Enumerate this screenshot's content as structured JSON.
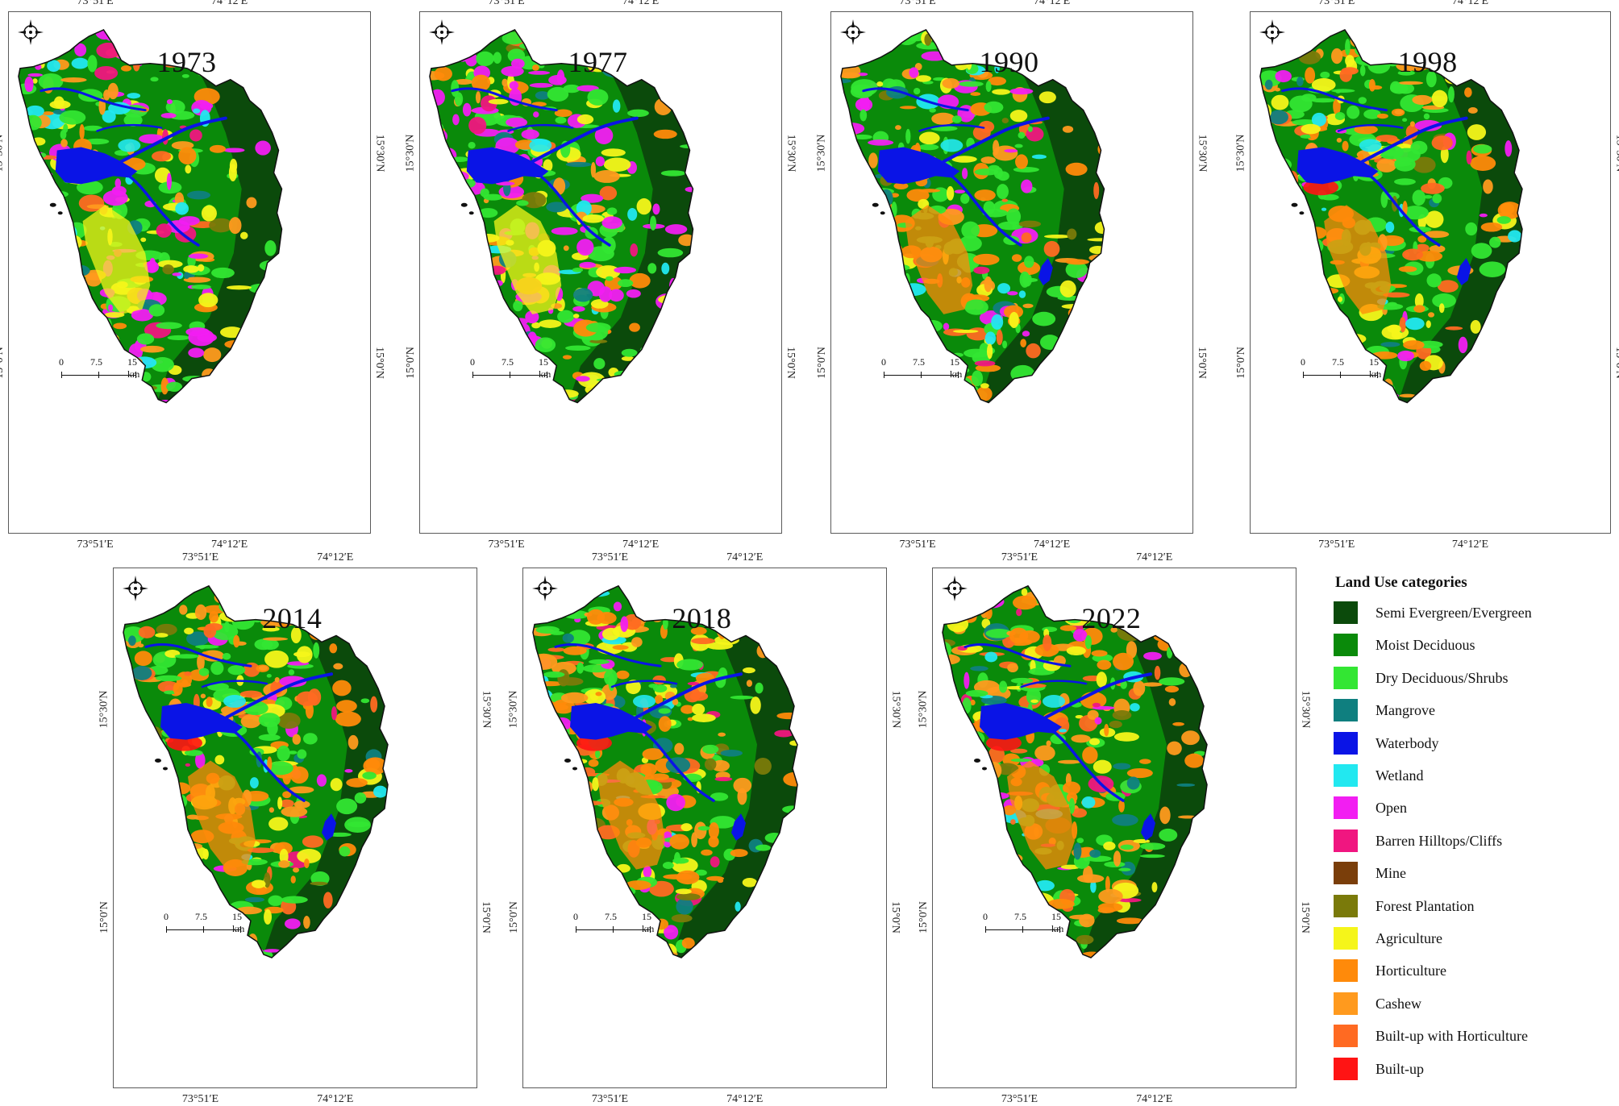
{
  "panels": [
    {
      "year": "1973",
      "lon_left": "73°51′E",
      "lon_right": "74°12′E",
      "lat_upper": "15°30′N",
      "lat_lower": "15°0′N",
      "scale": {
        "zero": "0",
        "mid": "7.5",
        "end": "15 km"
      }
    },
    {
      "year": "1977",
      "lon_left": "73°51′E",
      "lon_right": "74°12′E",
      "lat_upper": "15°30′N",
      "lat_lower": "15°0′N",
      "scale": {
        "zero": "0",
        "mid": "7.5",
        "end": "15 km"
      }
    },
    {
      "year": "1990",
      "lon_left": "73°51′E",
      "lon_right": "74°12′E",
      "lat_upper": "15°30′N",
      "lat_lower": "15°0′N",
      "scale": {
        "zero": "0",
        "mid": "7.5",
        "end": "15 km"
      }
    },
    {
      "year": "1998",
      "lon_left": "73°51′E",
      "lon_right": "74°12′E",
      "lat_upper": "15°30′N",
      "lat_lower": "15°0′N",
      "scale": {
        "zero": "0",
        "mid": "7.5",
        "end": "15 km"
      }
    },
    {
      "year": "2014",
      "lon_left": "73°51′E",
      "lon_right": "74°12′E",
      "lat_upper": "15°30′N",
      "lat_lower": "15°0′N",
      "scale": {
        "zero": "0",
        "mid": "7.5",
        "end": "15 km"
      }
    },
    {
      "year": "2018",
      "lon_left": "73°51′E",
      "lon_right": "74°12′E",
      "lat_upper": "15°30′N",
      "lat_lower": "15°0′N",
      "scale": {
        "zero": "0",
        "mid": "7.5",
        "end": "15 km"
      }
    },
    {
      "year": "2022",
      "lon_left": "73°51′E",
      "lon_right": "74°12′E",
      "lat_upper": "15°30′N",
      "lat_lower": "15°0′N",
      "scale": {
        "zero": "0",
        "mid": "7.5",
        "end": "15 km"
      }
    }
  ],
  "legend": {
    "title": "Land Use categories",
    "items": [
      {
        "label": "Semi Evergreen/Evergreen",
        "color": "#0b4a0b"
      },
      {
        "label": "Moist Deciduous",
        "color": "#0a8a0a"
      },
      {
        "label": "Dry Deciduous/Shrubs",
        "color": "#33e633"
      },
      {
        "label": "Mangrove",
        "color": "#0f7f7f"
      },
      {
        "label": "Waterbody",
        "color": "#0a14e6"
      },
      {
        "label": "Wetland",
        "color": "#22e8f0"
      },
      {
        "label": "Open",
        "color": "#f21ef2"
      },
      {
        "label": "Barren Hilltops/Cliffs",
        "color": "#f01680"
      },
      {
        "label": "Mine",
        "color": "#7a3e0a"
      },
      {
        "label": "Forest Plantation",
        "color": "#7a7a0a"
      },
      {
        "label": "Agriculture",
        "color": "#f5f51a"
      },
      {
        "label": "Horticulture",
        "color": "#ff8a0a"
      },
      {
        "label": "Cashew",
        "color": "#ff9a1e"
      },
      {
        "label": "Built-up with Horticulture",
        "color": "#ff6a22"
      },
      {
        "label": "Built-up",
        "color": "#ff1414"
      }
    ]
  }
}
